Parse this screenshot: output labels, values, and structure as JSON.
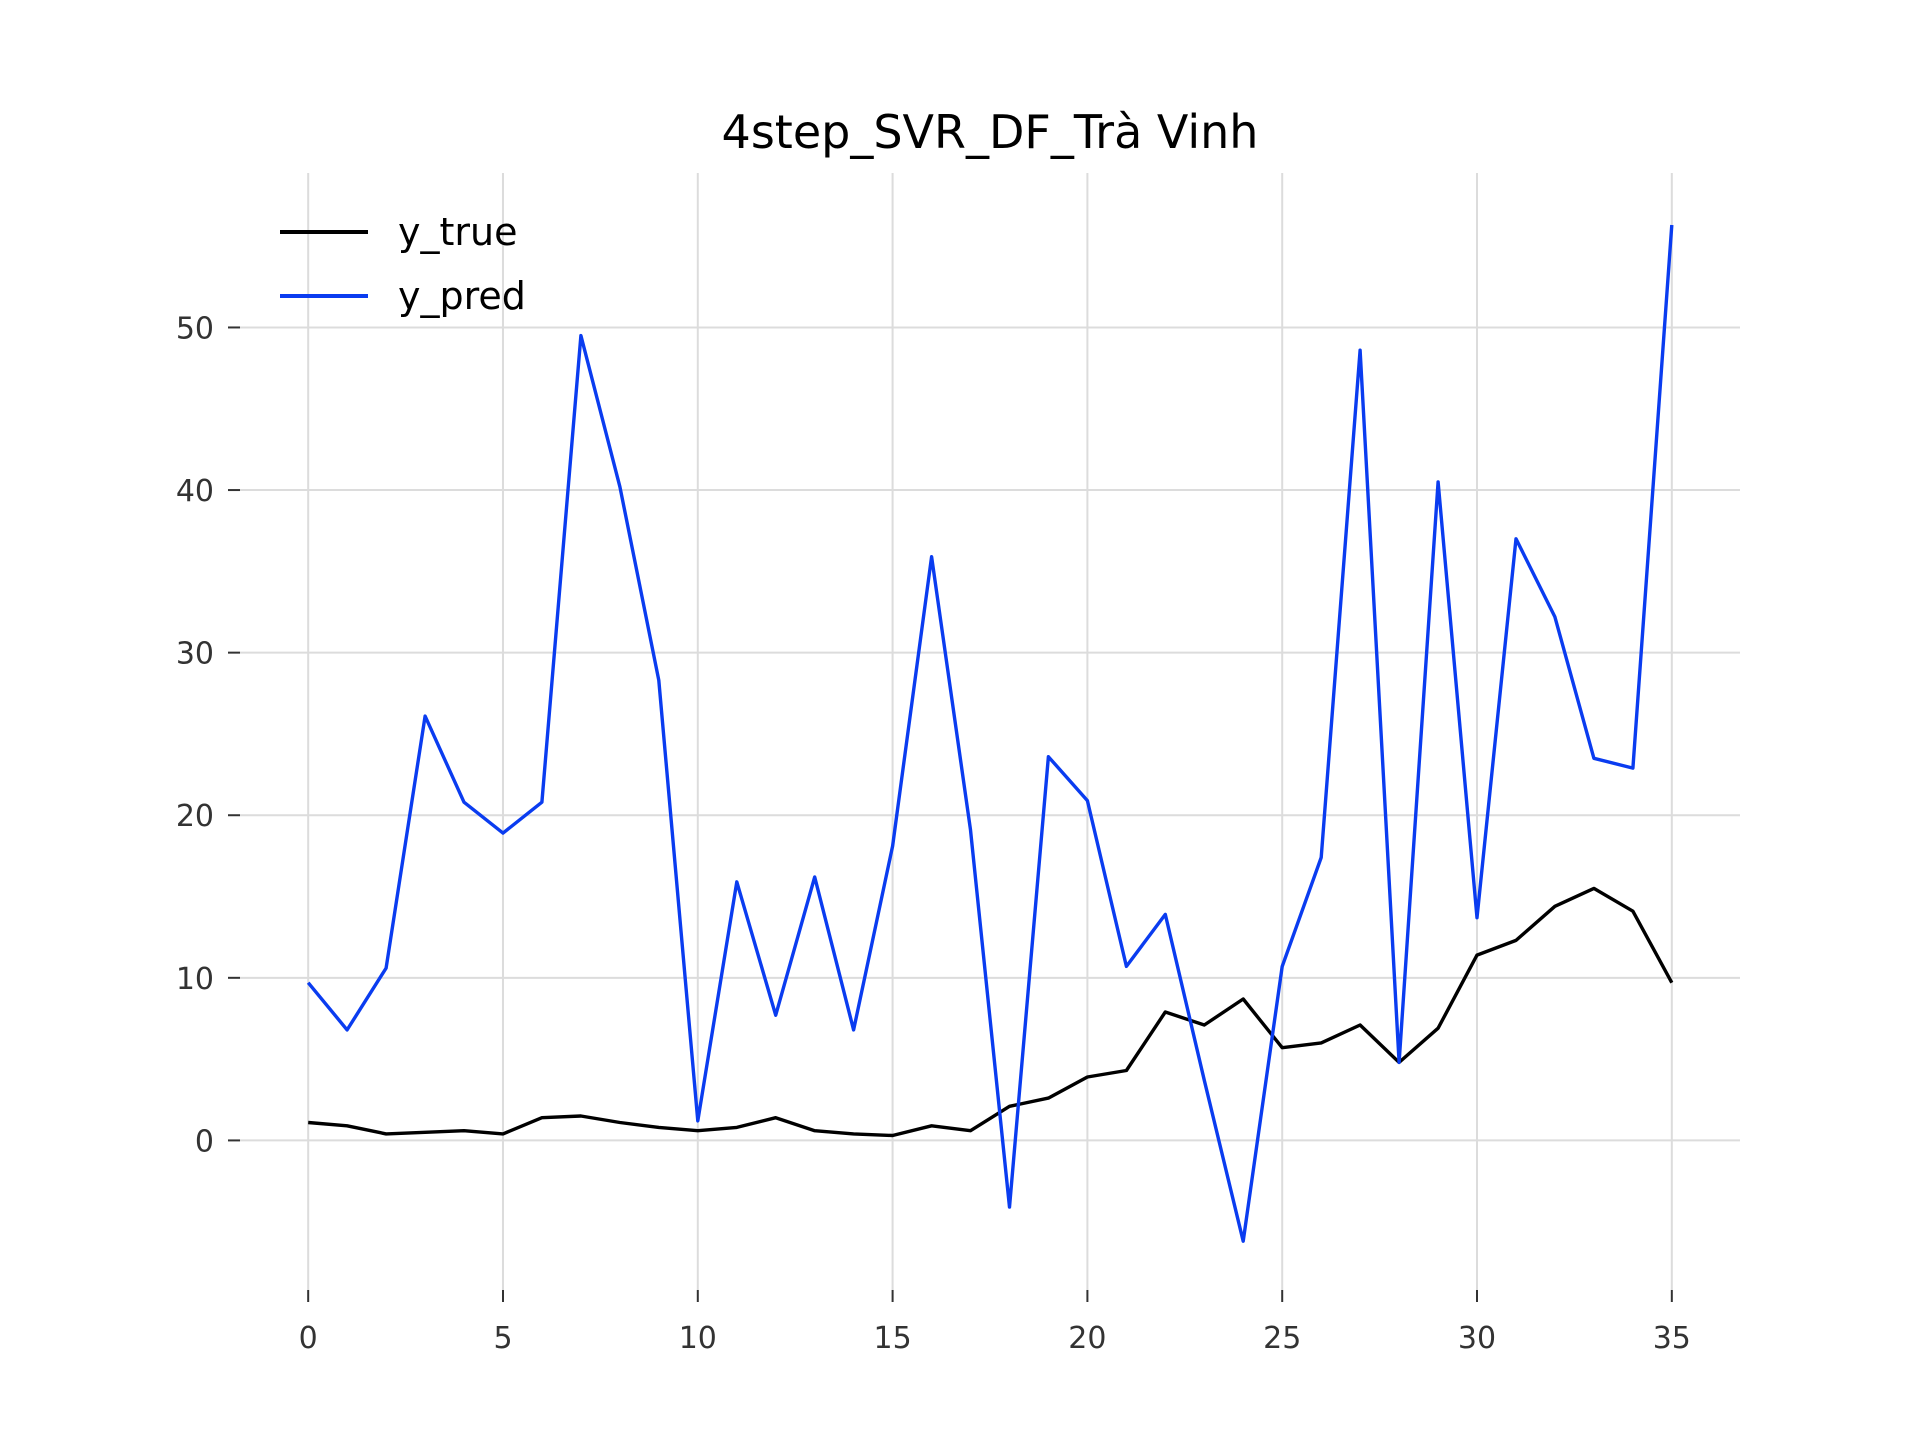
{
  "chart_data": {
    "type": "line",
    "title": "4step_SVR_DF_Trà Vinh",
    "xlabel": "",
    "ylabel": "",
    "xlim": [
      -1.75,
      36.75
    ],
    "ylim": [
      -9.2,
      59.5
    ],
    "xticks": [
      0,
      5,
      10,
      15,
      20,
      25,
      30,
      35
    ],
    "xtick_labels": [
      "0",
      "5",
      "10",
      "15",
      "20",
      "25",
      "30",
      "35"
    ],
    "yticks": [
      0,
      10,
      20,
      30,
      40,
      50
    ],
    "ytick_labels": [
      "0",
      "10",
      "20",
      "30",
      "40",
      "50"
    ],
    "grid": true,
    "legend_position": "top-left",
    "x": [
      0,
      1,
      2,
      3,
      4,
      5,
      6,
      7,
      8,
      9,
      10,
      11,
      12,
      13,
      14,
      15,
      16,
      17,
      18,
      19,
      20,
      21,
      22,
      23,
      24,
      25,
      26,
      27,
      28,
      29,
      30,
      31,
      32,
      33,
      34,
      35
    ],
    "series": [
      {
        "name": "y_true",
        "color": "#000000",
        "values": [
          1.1,
          0.9,
          0.4,
          0.5,
          0.6,
          0.4,
          1.4,
          1.5,
          1.1,
          0.8,
          0.6,
          0.8,
          1.4,
          0.6,
          0.4,
          0.3,
          0.9,
          0.6,
          2.1,
          2.6,
          3.9,
          4.3,
          7.9,
          7.1,
          8.7,
          5.7,
          6.0,
          7.1,
          4.8,
          6.9,
          11.4,
          12.3,
          14.4,
          15.5,
          14.1,
          9.7
        ]
      },
      {
        "name": "y_pred",
        "color": "#0a3cf0",
        "values": [
          9.7,
          6.8,
          10.6,
          26.1,
          20.8,
          18.9,
          20.8,
          49.5,
          40.2,
          28.3,
          1.2,
          15.9,
          7.7,
          16.2,
          6.8,
          18.1,
          35.9,
          19.1,
          -4.1,
          23.6,
          20.9,
          10.7,
          13.9,
          3.7,
          -6.2,
          10.7,
          17.4,
          48.6,
          4.8,
          40.5,
          13.7,
          37.0,
          32.2,
          23.5,
          22.9,
          56.3
        ]
      }
    ]
  }
}
